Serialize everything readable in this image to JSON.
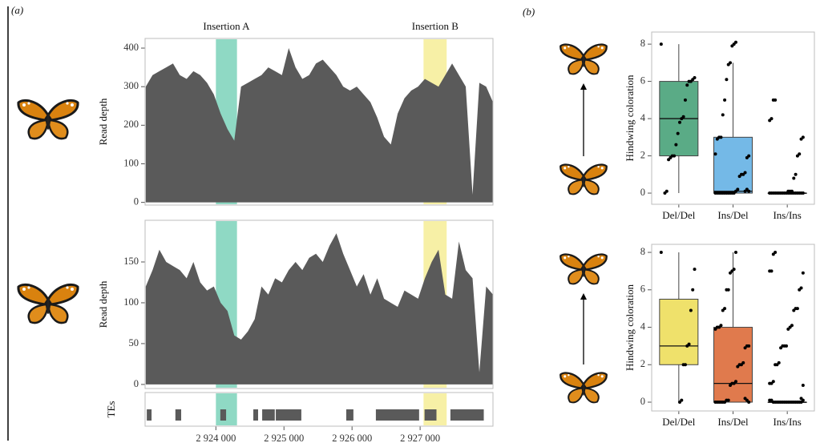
{
  "panel_labels": [
    "(a)",
    "(b)"
  ],
  "chart_data": [
    {
      "type": "area",
      "ylabel": "Read depth",
      "color": "#5a5a5a",
      "x": [
        2922970,
        2923070,
        2923170,
        2923270,
        2923370,
        2923470,
        2923570,
        2923670,
        2923770,
        2923870,
        2923970,
        2924070,
        2924170,
        2924270,
        2924370,
        2924470,
        2924570,
        2924670,
        2924770,
        2924870,
        2924970,
        2925070,
        2925170,
        2925270,
        2925370,
        2925470,
        2925570,
        2925670,
        2925770,
        2925870,
        2925970,
        2926070,
        2926170,
        2926270,
        2926370,
        2926470,
        2926570,
        2926670,
        2926770,
        2926870,
        2926970,
        2927070,
        2927170,
        2927270,
        2927370,
        2927470,
        2927570,
        2927670,
        2927770,
        2927870,
        2927970,
        2928070
      ],
      "values": [
        300,
        330,
        340,
        350,
        360,
        330,
        320,
        340,
        330,
        310,
        280,
        230,
        190,
        160,
        300,
        310,
        320,
        330,
        350,
        340,
        330,
        400,
        350,
        320,
        330,
        360,
        370,
        350,
        330,
        300,
        290,
        300,
        280,
        260,
        220,
        170,
        150,
        230,
        270,
        290,
        300,
        320,
        310,
        300,
        330,
        360,
        330,
        300,
        20,
        310,
        300,
        260
      ],
      "xlim": [
        2922960,
        2928070
      ],
      "ylim": [
        -7,
        425
      ],
      "yticks": [
        0,
        100,
        200,
        300,
        400
      ],
      "highlights": [
        {
          "label": "Insertion A",
          "range": [
            2924000,
            2924310
          ],
          "color": "#8fd9c4"
        },
        {
          "label": "Insertion B",
          "range": [
            2927050,
            2927390
          ],
          "color": "#f7f0a6"
        }
      ]
    },
    {
      "type": "area",
      "ylabel": "Read depth",
      "color": "#5a5a5a",
      "x": [
        2922970,
        2923070,
        2923170,
        2923270,
        2923370,
        2923470,
        2923570,
        2923670,
        2923770,
        2923870,
        2923970,
        2924070,
        2924170,
        2924270,
        2924370,
        2924470,
        2924570,
        2924670,
        2924770,
        2924870,
        2924970,
        2925070,
        2925170,
        2925270,
        2925370,
        2925470,
        2925570,
        2925670,
        2925770,
        2925870,
        2925970,
        2926070,
        2926170,
        2926270,
        2926370,
        2926470,
        2926570,
        2926670,
        2926770,
        2926870,
        2926970,
        2927070,
        2927170,
        2927270,
        2927370,
        2927470,
        2927570,
        2927670,
        2927770,
        2927870,
        2927970,
        2928070
      ],
      "values": [
        120,
        140,
        165,
        150,
        145,
        140,
        130,
        150,
        125,
        115,
        120,
        100,
        90,
        60,
        55,
        65,
        80,
        120,
        110,
        130,
        125,
        140,
        150,
        140,
        155,
        160,
        150,
        170,
        185,
        160,
        140,
        120,
        135,
        110,
        130,
        105,
        100,
        95,
        115,
        110,
        105,
        130,
        150,
        165,
        110,
        105,
        175,
        140,
        130,
        15,
        120,
        110
      ],
      "xlim": [
        2922960,
        2928070
      ],
      "ylim": [
        -5,
        201
      ],
      "yticks": [
        0,
        50,
        100,
        150
      ],
      "highlights": [
        {
          "range": [
            2924000,
            2924310
          ],
          "color": "#8fd9c4"
        },
        {
          "range": [
            2927050,
            2927390
          ],
          "color": "#f7f0a6"
        }
      ]
    },
    {
      "type": "segments",
      "ylabel": "TEs",
      "color": "#5a5a5a",
      "starts": [
        2922985,
        2923405,
        2924065,
        2924550,
        2924680,
        2924880,
        2925915,
        2926350,
        2927065,
        2927445
      ],
      "ends": [
        2923055,
        2923490,
        2924150,
        2924620,
        2924865,
        2925255,
        2926020,
        2926985,
        2927240,
        2927935
      ],
      "xlim": [
        2922960,
        2928070
      ],
      "xticks": [
        {
          "value": 2924000,
          "label": "2 924 000"
        },
        {
          "value": 2925000,
          "label": "2 925 000"
        },
        {
          "value": 2926000,
          "label": "2 926 000"
        },
        {
          "value": 2927000,
          "label": "2 927 000"
        }
      ],
      "highlights": [
        {
          "range": [
            2924000,
            2924310
          ],
          "color": "#8fd9c4"
        },
        {
          "range": [
            2927050,
            2927390
          ],
          "color": "#f7f0a6"
        }
      ]
    },
    {
      "type": "box",
      "ylabel": "Hindwing coloration",
      "categories": [
        "Del/Del",
        "Ins/Del",
        "Ins/Ins"
      ],
      "ylim": [
        -0.6,
        8.65
      ],
      "yticks": [
        0,
        2,
        4,
        6,
        8
      ],
      "boxes": [
        {
          "color": "#5aab86",
          "whisker_low": 0,
          "q1": 2,
          "median": 4,
          "q3": 6,
          "whisker_high": 8,
          "points": [
            8,
            6.2,
            6.1,
            6,
            6,
            5.8,
            5,
            4.1,
            4,
            3.8,
            3.2,
            2.6,
            2,
            2,
            1.9,
            1.8,
            0.1,
            0
          ]
        },
        {
          "color": "#74b9e7",
          "whisker_low": 0,
          "q1": 0,
          "median": 0.1,
          "q3": 3,
          "whisker_high": 7,
          "points": [
            8.1,
            8,
            7.9,
            7,
            6.9,
            6.1,
            5,
            4.2,
            3,
            3,
            2.9,
            2.1,
            2,
            1.9,
            1.1,
            1,
            1,
            0.9,
            0.2,
            0.1,
            0,
            0,
            0,
            0,
            0,
            0,
            0,
            0,
            0,
            0,
            0,
            0.1,
            0.2,
            0.1
          ]
        },
        {
          "color": "#dddddd",
          "whisker_low": 0,
          "q1": 0,
          "median": 0,
          "q3": 0,
          "whisker_high": 0,
          "points": [
            5,
            5,
            4,
            3.9,
            3,
            2.9,
            2.1,
            2,
            1,
            0.8,
            0,
            0,
            0,
            0,
            0,
            0,
            0,
            0,
            0,
            0,
            0,
            0,
            0,
            0,
            0,
            0,
            0,
            0,
            0,
            0.1,
            0.1,
            0.1
          ]
        }
      ]
    },
    {
      "type": "box",
      "ylabel": "Hindwing coloration",
      "categories": [
        "Del/Del",
        "Ins/Del",
        "Ins/Ins"
      ],
      "ylim": [
        -0.47,
        8.43
      ],
      "yticks": [
        0,
        2,
        4,
        6,
        8
      ],
      "boxes": [
        {
          "color": "#efe16b",
          "whisker_low": 0,
          "q1": 2,
          "median": 3,
          "q3": 5.5,
          "whisker_high": 8,
          "points": [
            8,
            7.1,
            6,
            4.9,
            3.1,
            3,
            2,
            2,
            0.1,
            0
          ]
        },
        {
          "color": "#e07a4d",
          "whisker_low": 0,
          "q1": 0,
          "median": 1,
          "q3": 4,
          "whisker_high": 8,
          "points": [
            8,
            7.1,
            7,
            6.9,
            6,
            6,
            5,
            4.9,
            4.1,
            4,
            4,
            3.9,
            3,
            3,
            2.9,
            2.1,
            2,
            2,
            1.9,
            1.1,
            1,
            1,
            0.9,
            0.1,
            0.1,
            0,
            0,
            0,
            0,
            0,
            0,
            0,
            0.1,
            0.2
          ]
        },
        {
          "color": "#dddddd",
          "whisker_low": 0,
          "q1": 0,
          "median": 0,
          "q3": 0,
          "whisker_high": 0,
          "points": [
            8,
            7.9,
            7,
            7,
            6.9,
            6.1,
            6,
            5,
            5,
            4.9,
            4.1,
            4,
            3.9,
            3,
            3,
            3,
            2.9,
            2.1,
            2,
            2,
            1.1,
            1,
            1,
            0.9,
            0,
            0,
            0,
            0,
            0,
            0,
            0,
            0,
            0,
            0,
            0,
            0,
            0,
            0,
            0,
            0,
            0.1,
            0.1,
            0.1,
            0.2
          ]
        }
      ]
    }
  ]
}
